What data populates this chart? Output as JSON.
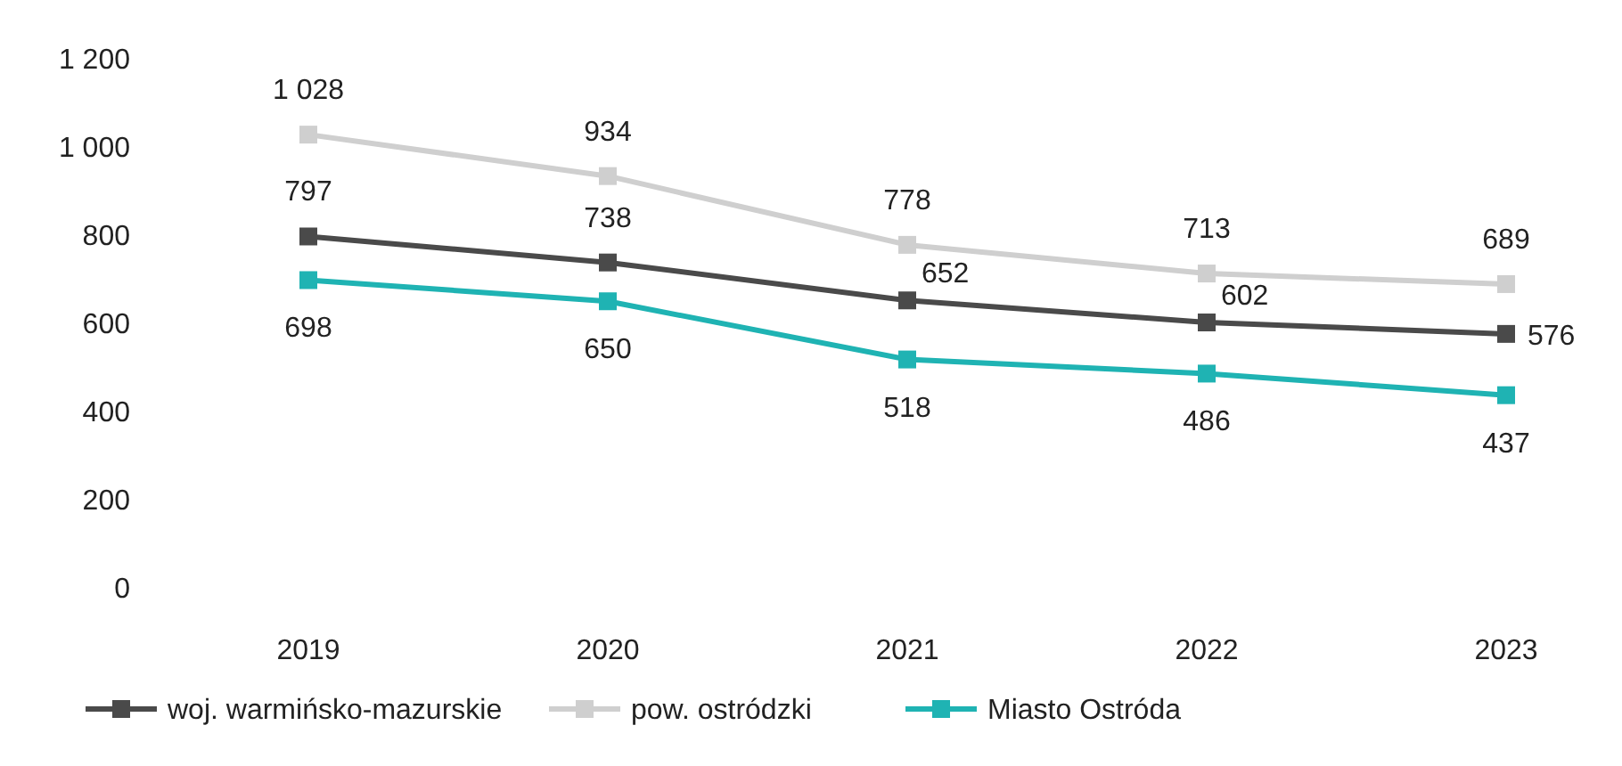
{
  "chart_data": {
    "type": "line",
    "categories": [
      "2019",
      "2020",
      "2021",
      "2022",
      "2023"
    ],
    "series": [
      {
        "name": "woj. warmińsko-mazurskie",
        "color": "#4a4a4a",
        "values": [
          797,
          738,
          652,
          602,
          576
        ],
        "value_labels": [
          "797",
          "738",
          "652",
          "602",
          "576"
        ]
      },
      {
        "name": "pow. ostródzki",
        "color": "#cfcfcf",
        "values": [
          1028,
          934,
          778,
          713,
          689
        ],
        "value_labels": [
          "1 028",
          "934",
          "778",
          "713",
          "689"
        ]
      },
      {
        "name": "Miasto Ostróda",
        "color": "#1fb3b3",
        "values": [
          698,
          650,
          518,
          486,
          437
        ],
        "value_labels": [
          "698",
          "650",
          "518",
          "486",
          "437"
        ]
      }
    ],
    "ylim": [
      0,
      1200
    ],
    "yticks": [
      0,
      200,
      400,
      600,
      800,
      {
        "value": 1000,
        "label": "1 000"
      },
      {
        "value": 1200,
        "label": "1 200"
      }
    ],
    "grid": false,
    "legend": "bottom",
    "marker": "square",
    "line_style": "solid"
  }
}
